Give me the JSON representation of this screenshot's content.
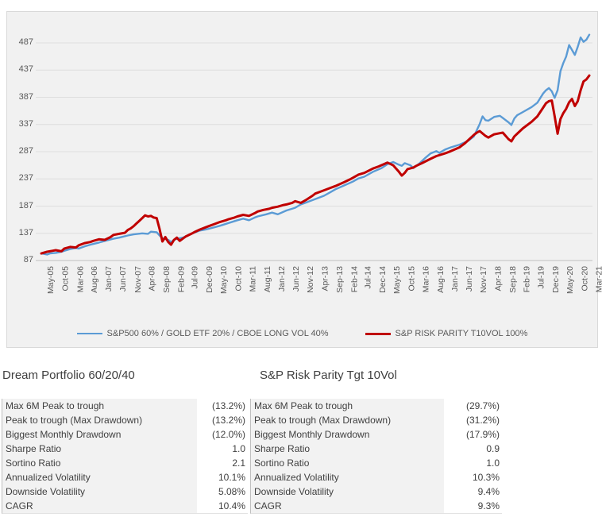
{
  "chart_data": {
    "type": "line",
    "title": "",
    "xlabel": "",
    "ylabel": "",
    "grid": true,
    "legend_position": "bottom",
    "y_ticks": [
      487,
      437,
      387,
      337,
      287,
      237,
      187,
      137,
      87
    ],
    "ylim": [
      87,
      512
    ],
    "x_tick_labels": [
      "May-05",
      "Oct-05",
      "Mar-06",
      "Aug-06",
      "Jan-07",
      "Jun-07",
      "Nov-07",
      "Apr-08",
      "Sep-08",
      "Feb-09",
      "Jul-09",
      "Dec-09",
      "May-10",
      "Oct-10",
      "Mar-11",
      "Aug-11",
      "Jan-12",
      "Jun-12",
      "Nov-12",
      "Apr-13",
      "Sep-13",
      "Feb-14",
      "Jul-14",
      "Dec-14",
      "May-15",
      "Oct-15",
      "Mar-16",
      "Aug-16",
      "Jan-17",
      "Jun-17",
      "Nov-17",
      "Apr-18",
      "Sep-18",
      "Feb-19",
      "Jul-19",
      "Dec-19",
      "May-20",
      "Oct-20",
      "Mar-21"
    ],
    "x_tick_month_step": 5,
    "months_total": 190,
    "series": [
      {
        "id": "series-line-dream-portfolio",
        "name": "S&P500 60% / GOLD ETF 20% / CBOE LONG VOL 40%",
        "color": "#5B9BD5",
        "width": 2.4,
        "points": [
          [
            0,
            100
          ],
          [
            2,
            98
          ],
          [
            3,
            100
          ],
          [
            5,
            101
          ],
          [
            7,
            103
          ],
          [
            8,
            105
          ],
          [
            10,
            108
          ],
          [
            12,
            110
          ],
          [
            13,
            109
          ],
          [
            15,
            113
          ],
          [
            17,
            116
          ],
          [
            20,
            120
          ],
          [
            22,
            123
          ],
          [
            25,
            127
          ],
          [
            27,
            129
          ],
          [
            30,
            133
          ],
          [
            32,
            135
          ],
          [
            35,
            137
          ],
          [
            37,
            136
          ],
          [
            38,
            140
          ],
          [
            40,
            139
          ],
          [
            41,
            133
          ],
          [
            42,
            128
          ],
          [
            44,
            125
          ],
          [
            45,
            121
          ],
          [
            46,
            125
          ],
          [
            47,
            127
          ],
          [
            49,
            129
          ],
          [
            50,
            131
          ],
          [
            52,
            136
          ],
          [
            55,
            142
          ],
          [
            57,
            144
          ],
          [
            60,
            148
          ],
          [
            62,
            151
          ],
          [
            65,
            156
          ],
          [
            68,
            161
          ],
          [
            70,
            164
          ],
          [
            72,
            161
          ],
          [
            74,
            166
          ],
          [
            75,
            168
          ],
          [
            78,
            172
          ],
          [
            80,
            175
          ],
          [
            82,
            172
          ],
          [
            85,
            179
          ],
          [
            88,
            184
          ],
          [
            90,
            190
          ],
          [
            92,
            194
          ],
          [
            95,
            200
          ],
          [
            98,
            206
          ],
          [
            100,
            212
          ],
          [
            102,
            218
          ],
          [
            105,
            225
          ],
          [
            108,
            232
          ],
          [
            110,
            238
          ],
          [
            112,
            241
          ],
          [
            115,
            250
          ],
          [
            118,
            257
          ],
          [
            120,
            264
          ],
          [
            122,
            268
          ],
          [
            124,
            263
          ],
          [
            125,
            261
          ],
          [
            126,
            266
          ],
          [
            128,
            262
          ],
          [
            129,
            257
          ],
          [
            131,
            265
          ],
          [
            133,
            275
          ],
          [
            135,
            284
          ],
          [
            137,
            288
          ],
          [
            138,
            285
          ],
          [
            140,
            291
          ],
          [
            142,
            295
          ],
          [
            145,
            300
          ],
          [
            148,
            307
          ],
          [
            150,
            315
          ],
          [
            152,
            338
          ],
          [
            153,
            352
          ],
          [
            154,
            345
          ],
          [
            155,
            344
          ],
          [
            157,
            351
          ],
          [
            159,
            353
          ],
          [
            160,
            349
          ],
          [
            162,
            341
          ],
          [
            163,
            336
          ],
          [
            164,
            348
          ],
          [
            165,
            354
          ],
          [
            167,
            360
          ],
          [
            170,
            369
          ],
          [
            172,
            377
          ],
          [
            174,
            394
          ],
          [
            175,
            400
          ],
          [
            176,
            404
          ],
          [
            177,
            398
          ],
          [
            178,
            386
          ],
          [
            179,
            400
          ],
          [
            180,
            435
          ],
          [
            181,
            450
          ],
          [
            182,
            462
          ],
          [
            183,
            483
          ],
          [
            184,
            474
          ],
          [
            185,
            465
          ],
          [
            186,
            480
          ],
          [
            187,
            497
          ],
          [
            188,
            489
          ],
          [
            189,
            493
          ],
          [
            190,
            502
          ]
        ]
      },
      {
        "id": "series-line-risk-parity",
        "name": "S&P RISK PARITY T10VOL 100%",
        "color": "#C00000",
        "width": 3,
        "points": [
          [
            0,
            100
          ],
          [
            2,
            103
          ],
          [
            4,
            105
          ],
          [
            5,
            106
          ],
          [
            7,
            104
          ],
          [
            8,
            109
          ],
          [
            10,
            112
          ],
          [
            12,
            111
          ],
          [
            13,
            115
          ],
          [
            15,
            119
          ],
          [
            17,
            121
          ],
          [
            18,
            123
          ],
          [
            20,
            126
          ],
          [
            22,
            125
          ],
          [
            24,
            130
          ],
          [
            25,
            134
          ],
          [
            27,
            136
          ],
          [
            29,
            138
          ],
          [
            30,
            143
          ],
          [
            31,
            146
          ],
          [
            32,
            150
          ],
          [
            33,
            155
          ],
          [
            34,
            160
          ],
          [
            35,
            165
          ],
          [
            36,
            170
          ],
          [
            37,
            168
          ],
          [
            38,
            169
          ],
          [
            39,
            166
          ],
          [
            40,
            165
          ],
          [
            41,
            145
          ],
          [
            42,
            122
          ],
          [
            43,
            130
          ],
          [
            44,
            121
          ],
          [
            45,
            116
          ],
          [
            46,
            125
          ],
          [
            47,
            129
          ],
          [
            48,
            123
          ],
          [
            50,
            131
          ],
          [
            52,
            136
          ],
          [
            53,
            139
          ],
          [
            55,
            144
          ],
          [
            57,
            148
          ],
          [
            58,
            150
          ],
          [
            60,
            154
          ],
          [
            62,
            158
          ],
          [
            64,
            161
          ],
          [
            65,
            163
          ],
          [
            67,
            166
          ],
          [
            68,
            168
          ],
          [
            70,
            171
          ],
          [
            72,
            169
          ],
          [
            74,
            174
          ],
          [
            75,
            177
          ],
          [
            77,
            180
          ],
          [
            79,
            182
          ],
          [
            80,
            184
          ],
          [
            82,
            186
          ],
          [
            84,
            189
          ],
          [
            85,
            190
          ],
          [
            87,
            193
          ],
          [
            88,
            196
          ],
          [
            90,
            193
          ],
          [
            92,
            199
          ],
          [
            94,
            206
          ],
          [
            95,
            210
          ],
          [
            97,
            214
          ],
          [
            100,
            220
          ],
          [
            102,
            224
          ],
          [
            105,
            231
          ],
          [
            107,
            236
          ],
          [
            110,
            245
          ],
          [
            112,
            248
          ],
          [
            115,
            256
          ],
          [
            117,
            260
          ],
          [
            120,
            267
          ],
          [
            122,
            262
          ],
          [
            123,
            256
          ],
          [
            124,
            250
          ],
          [
            125,
            243
          ],
          [
            126,
            248
          ],
          [
            127,
            255
          ],
          [
            129,
            258
          ],
          [
            130,
            261
          ],
          [
            132,
            266
          ],
          [
            135,
            274
          ],
          [
            137,
            279
          ],
          [
            140,
            284
          ],
          [
            142,
            288
          ],
          [
            145,
            295
          ],
          [
            147,
            303
          ],
          [
            150,
            318
          ],
          [
            151,
            322
          ],
          [
            152,
            325
          ],
          [
            154,
            316
          ],
          [
            155,
            313
          ],
          [
            157,
            319
          ],
          [
            159,
            321
          ],
          [
            160,
            322
          ],
          [
            162,
            310
          ],
          [
            163,
            306
          ],
          [
            164,
            315
          ],
          [
            165,
            320
          ],
          [
            167,
            330
          ],
          [
            170,
            342
          ],
          [
            172,
            352
          ],
          [
            174,
            368
          ],
          [
            175,
            376
          ],
          [
            176,
            380
          ],
          [
            177,
            381
          ],
          [
            178,
            352
          ],
          [
            179,
            320
          ],
          [
            180,
            347
          ],
          [
            181,
            358
          ],
          [
            182,
            366
          ],
          [
            183,
            378
          ],
          [
            184,
            384
          ],
          [
            185,
            371
          ],
          [
            186,
            380
          ],
          [
            187,
            400
          ],
          [
            188,
            416
          ],
          [
            189,
            420
          ],
          [
            190,
            427
          ]
        ]
      }
    ]
  },
  "tables": [
    {
      "title": "Dream Portfolio 60/20/40",
      "rows": [
        {
          "label": "Max 6M Peak to trough",
          "value": "(13.2%)"
        },
        {
          "label": "Peak to trough (Max Drawdown)",
          "value": "(13.2%)"
        },
        {
          "label": "Biggest Monthly Drawdown",
          "value": "(12.0%)"
        },
        {
          "label": "Sharpe Ratio",
          "value": "1.0"
        },
        {
          "label": "Sortino Ratio",
          "value": "2.1"
        },
        {
          "label": "Annualized Volatility",
          "value": "10.1%"
        },
        {
          "label": "Downside Volatility",
          "value": "5.08%"
        },
        {
          "label": "CAGR",
          "value": "10.4%"
        }
      ]
    },
    {
      "title": "S&P Risk Parity Tgt 10Vol",
      "rows": [
        {
          "label": "Max 6M Peak to trough",
          "value": "(29.7%)"
        },
        {
          "label": "Peak to trough (Max Drawdown)",
          "value": "(31.2%)"
        },
        {
          "label": "Biggest Monthly Drawdown",
          "value": "(17.9%)"
        },
        {
          "label": "Sharpe Ratio",
          "value": "0.9"
        },
        {
          "label": "Sortino Ratio",
          "value": "1.0"
        },
        {
          "label": "Annualized Volatility",
          "value": "10.3%"
        },
        {
          "label": "Downside Volatility",
          "value": "9.4%"
        },
        {
          "label": "CAGR",
          "value": "9.3%"
        }
      ]
    }
  ],
  "colors": {
    "chart_background": "#F1F1F1",
    "gridline": "#DEDEDE",
    "axis_line": "#C0C0C0",
    "axis_text": "#595959",
    "table_label_bg": "#F2F2F2"
  }
}
